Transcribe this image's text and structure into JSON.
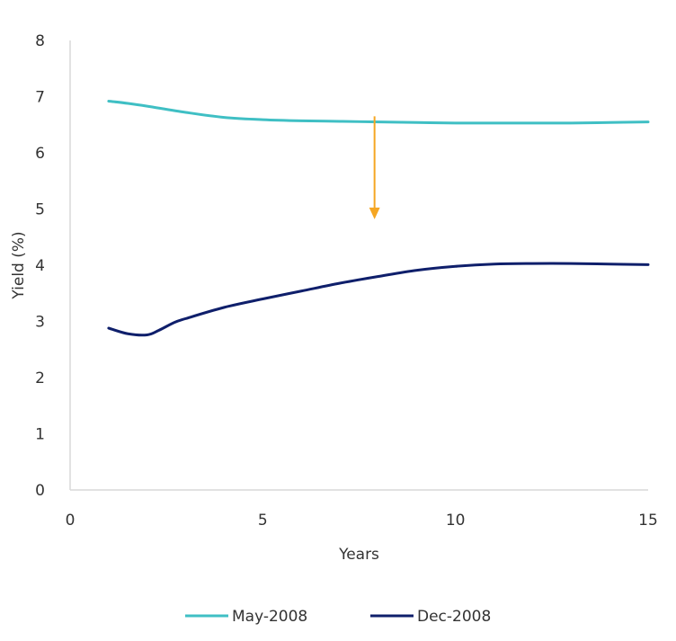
{
  "chart_data": {
    "type": "line",
    "title": "",
    "xlabel": "Years",
    "ylabel": "Yield (%)",
    "xlim": [
      0,
      15
    ],
    "ylim": [
      0,
      8
    ],
    "x_ticks": [
      0,
      5,
      10,
      15
    ],
    "y_ticks": [
      0,
      1,
      2,
      3,
      4,
      5,
      6,
      7,
      8
    ],
    "grid": false,
    "legend_position": "bottom",
    "series": [
      {
        "name": "May-2008",
        "color": "#3fbfc4",
        "x": [
          1,
          1.5,
          2,
          3,
          4,
          5,
          6,
          7,
          8,
          9,
          10,
          11,
          12,
          13,
          14,
          15
        ],
        "y": [
          6.92,
          6.88,
          6.83,
          6.72,
          6.63,
          6.59,
          6.57,
          6.56,
          6.55,
          6.54,
          6.53,
          6.53,
          6.53,
          6.53,
          6.54,
          6.55
        ]
      },
      {
        "name": "Dec-2008",
        "color": "#0f1f6b",
        "x": [
          1,
          1.5,
          2,
          2.3,
          2.7,
          3,
          4,
          5,
          6,
          7,
          8,
          9,
          10,
          11,
          12,
          13,
          14,
          15
        ],
        "y": [
          2.88,
          2.78,
          2.76,
          2.84,
          2.98,
          3.05,
          3.25,
          3.4,
          3.54,
          3.68,
          3.8,
          3.91,
          3.98,
          4.02,
          4.03,
          4.03,
          4.02,
          4.01
        ]
      }
    ],
    "annotations": [
      {
        "type": "arrow",
        "color": "#f5a623",
        "x": 7.9,
        "y_from": 6.65,
        "y_to": 4.85,
        "text": ""
      }
    ]
  }
}
